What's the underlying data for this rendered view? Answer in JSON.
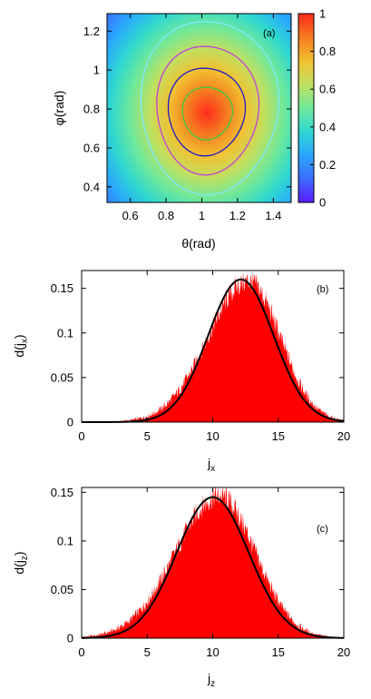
{
  "chart_data": [
    {
      "type": "heatmap",
      "panel_label": "(a)",
      "xlabel": "θ(rad)",
      "ylabel": "φ(rad)",
      "xlim": [
        0.47,
        1.5
      ],
      "ylim": [
        0.32,
        1.29
      ],
      "xticks": [
        0.6,
        0.8,
        1,
        1.2,
        1.4
      ],
      "xtick_labels": [
        "0.6",
        "0.8",
        "1",
        "1.2",
        "1.4"
      ],
      "yticks": [
        0.4,
        0.6,
        0.8,
        1,
        1.2
      ],
      "ytick_labels": [
        "0.4",
        "0.6",
        "0.8",
        "1",
        "1.2"
      ],
      "peak": {
        "theta": 1.03,
        "phi": 0.78,
        "value": 1
      },
      "colorbar": {
        "min": 0,
        "max": 1,
        "ticks": [
          0,
          0.2,
          0.4,
          0.6,
          0.8,
          1
        ],
        "tick_labels": [
          "0",
          "0.2",
          "0.4",
          "0.6",
          "0.8",
          "1"
        ],
        "colors": [
          "#5a1aff",
          "#3c6cff",
          "#2aa6ff",
          "#2ed8d0",
          "#6fe89a",
          "#c0e060",
          "#f2c030",
          "#f57a20",
          "#ff2a1a"
        ]
      },
      "contours": [
        {
          "level": 0.8,
          "color": "#3cc83c",
          "theta_center": 1.03,
          "phi_center": 0.78,
          "theta_halfwidth": 0.14,
          "phi_halfwidth": 0.135
        },
        {
          "level": 0.6,
          "color": "#1a1ac8",
          "theta_center": 1.025,
          "phi_center": 0.79,
          "theta_halfwidth": 0.215,
          "phi_halfwidth": 0.225
        },
        {
          "level": 0.4,
          "color": "#c040d8",
          "theta_center": 1.03,
          "phi_center": 0.8,
          "theta_halfwidth": 0.285,
          "phi_halfwidth": 0.33
        },
        {
          "level": 0.2,
          "color": "#7fe8ff",
          "theta_center": 1.04,
          "phi_center": 0.815,
          "theta_halfwidth": 0.385,
          "phi_halfwidth": 0.445
        }
      ]
    },
    {
      "type": "area",
      "panel_label": "(b)",
      "xlabel": "j",
      "xlabel_sub": "x",
      "ylabel": "d(j",
      "ylabel_sub": "x",
      "ylabel_close": ")",
      "xlim": [
        0,
        20
      ],
      "ylim": [
        0,
        0.17
      ],
      "xticks": [
        0,
        5,
        10,
        15,
        20
      ],
      "xtick_labels": [
        "0",
        "5",
        "10",
        "15",
        "20"
      ],
      "yticks": [
        0,
        0.05,
        0.1,
        0.15
      ],
      "ytick_labels": [
        "0",
        "0.05",
        "0.1",
        "0.15"
      ],
      "histogram": {
        "color": "#ff0000",
        "mean": 12.7,
        "sd": 2.45,
        "peak": 0.158,
        "skew": 1.25
      },
      "fit_curve": {
        "color": "#000000",
        "mean": 12.15,
        "sd": 2.5,
        "peak": 0.16
      }
    },
    {
      "type": "area",
      "panel_label": "(c)",
      "xlabel": "j",
      "xlabel_sub": "z",
      "ylabel": "d(j",
      "ylabel_sub": "z",
      "ylabel_close": ")",
      "xlim": [
        0,
        20
      ],
      "ylim": [
        0,
        0.155
      ],
      "xticks": [
        0,
        5,
        10,
        15,
        20
      ],
      "xtick_labels": [
        "0",
        "5",
        "10",
        "15",
        "20"
      ],
      "yticks": [
        0,
        0.05,
        0.1,
        0.15
      ],
      "ytick_labels": [
        "0",
        "0.05",
        "0.1",
        "0.15"
      ],
      "histogram": {
        "color": "#ff0000",
        "mean": 10.5,
        "sd": 2.75,
        "peak": 0.146,
        "skew": 1.22
      },
      "fit_curve": {
        "color": "#000000",
        "mean": 10.0,
        "sd": 2.75,
        "peak": 0.145
      }
    }
  ]
}
